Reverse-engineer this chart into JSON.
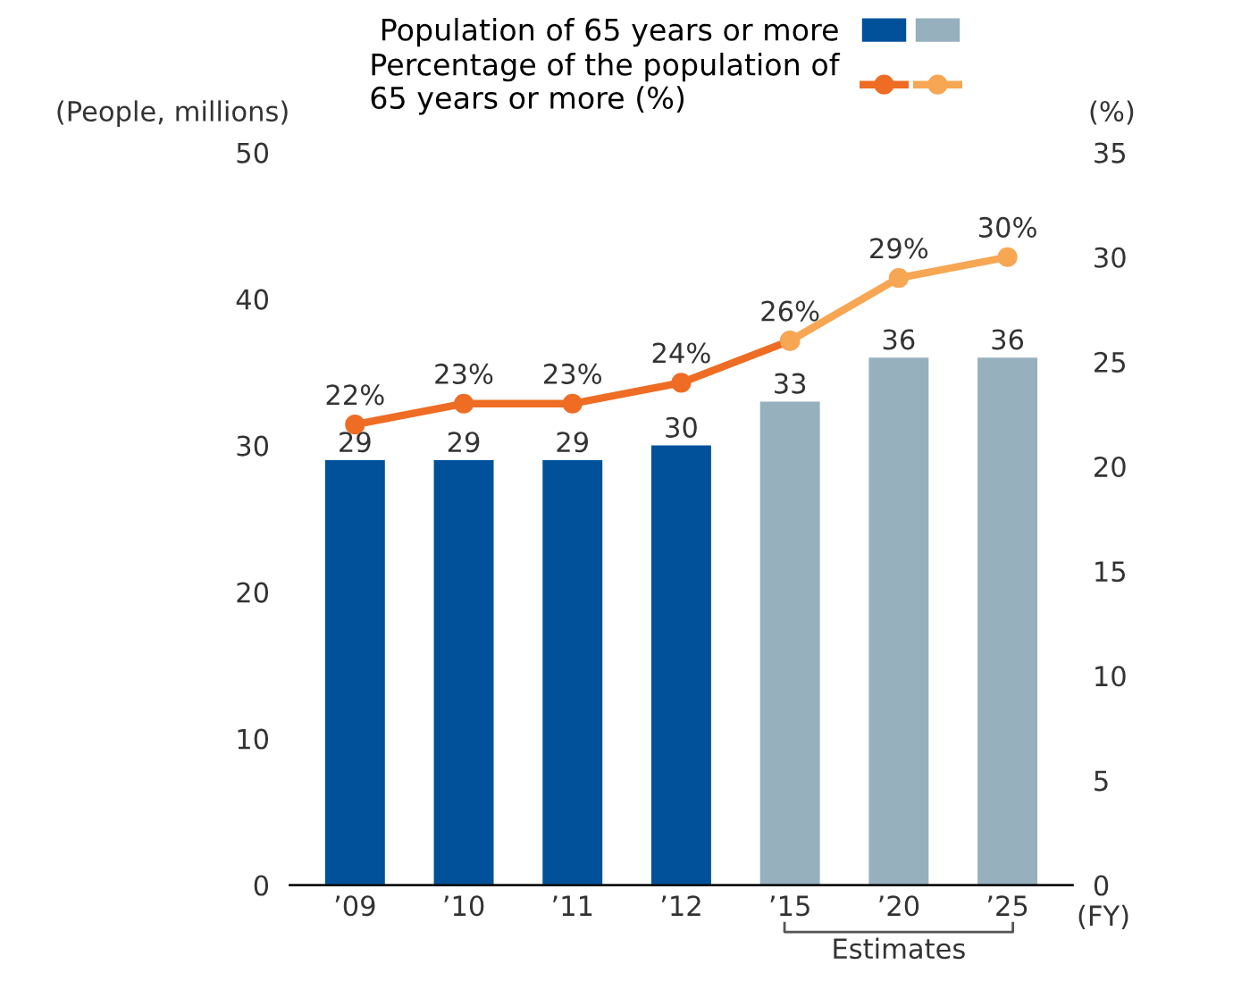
{
  "chart_data": {
    "type": "bar",
    "categories": [
      "’09",
      "’10",
      "’11",
      "’12",
      "’15",
      "’20",
      "’25"
    ],
    "series": [
      {
        "name": "Population of 65 years or more",
        "colors": [
          "#00519a",
          "#00519a",
          "#00519a",
          "#00519a",
          "#96b0be",
          "#96b0be",
          "#96b0be"
        ],
        "values": [
          29,
          29,
          29,
          30,
          33,
          36,
          36
        ],
        "value_labels": [
          "29",
          "29",
          "29",
          "30",
          "33",
          "36",
          "36"
        ]
      },
      {
        "name": "Percentage of the population of\n65 years or more (%)",
        "type": "line",
        "axis": "y2",
        "color": "#ee6c23",
        "values": [
          22,
          23,
          23,
          24,
          26,
          null,
          null
        ],
        "value_labels": [
          "22%",
          "23%",
          "23%",
          "24%",
          "26%",
          null,
          null
        ]
      },
      {
        "type": "line",
        "axis": "y2",
        "color": "#f7a654",
        "values": [
          null,
          null,
          null,
          null,
          26,
          29,
          30
        ],
        "value_labels": [
          null,
          null,
          null,
          null,
          null,
          "29%",
          "30%"
        ]
      }
    ],
    "ylabel": "(People, millions)",
    "y2label": "(%)",
    "xlabel": "(FY)",
    "ylim": [
      0,
      50
    ],
    "yticks": [
      0,
      10,
      20,
      30,
      40,
      50
    ],
    "y2lim": [
      0,
      35
    ],
    "y2ticks": [
      0,
      5,
      10,
      15,
      20,
      25,
      30,
      35
    ],
    "annotations": [
      "Estimates"
    ],
    "marker": "circle",
    "line_style": "solid",
    "grid": false,
    "legend": "top"
  }
}
